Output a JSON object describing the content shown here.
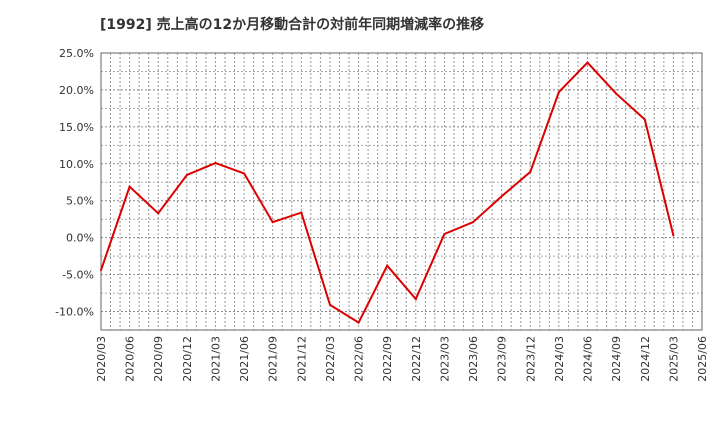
{
  "chart_data": {
    "type": "line",
    "title": "[1992]  売上高の12か月移動合計の対前年同期増減率の推移",
    "xlabel": "",
    "ylabel": "",
    "ylim": [
      -12.5,
      25.0
    ],
    "grid": true,
    "y_ticks": [
      25.0,
      20.0,
      15.0,
      10.0,
      5.0,
      0.0,
      -5.0,
      -10.0
    ],
    "y_tick_labels": [
      "25.0%",
      "20.0%",
      "15.0%",
      "10.0%",
      "5.0%",
      "0.0%",
      "-5.0%",
      "-10.0%"
    ],
    "x_tick_labels": [
      "2020/03",
      "2020/06",
      "2020/09",
      "2020/12",
      "2021/03",
      "2021/06",
      "2021/09",
      "2021/12",
      "2022/03",
      "2022/06",
      "2022/09",
      "2022/12",
      "2023/03",
      "2023/06",
      "2023/09",
      "2023/12",
      "2024/03",
      "2024/06",
      "2024/09",
      "2024/12",
      "2025/03",
      "2025/06"
    ],
    "series": [
      {
        "name": "売上高の12か月移動合計の対前年同期増減率",
        "color": "#dd0000",
        "x": [
          "2020/03",
          "2020/06",
          "2020/09",
          "2020/12",
          "2021/03",
          "2021/06",
          "2021/09",
          "2021/12",
          "2022/03",
          "2022/06",
          "2022/09",
          "2022/12",
          "2023/03",
          "2023/06",
          "2023/09",
          "2023/12",
          "2024/03",
          "2024/06",
          "2024/09",
          "2024/12",
          "2025/03"
        ],
        "values": [
          -4.4,
          6.9,
          3.3,
          8.5,
          10.1,
          8.7,
          2.1,
          3.4,
          -9.1,
          -11.5,
          -3.8,
          -8.3,
          0.5,
          2.1,
          5.6,
          8.9,
          19.7,
          23.7,
          19.5,
          16.0,
          0.3
        ]
      }
    ]
  }
}
